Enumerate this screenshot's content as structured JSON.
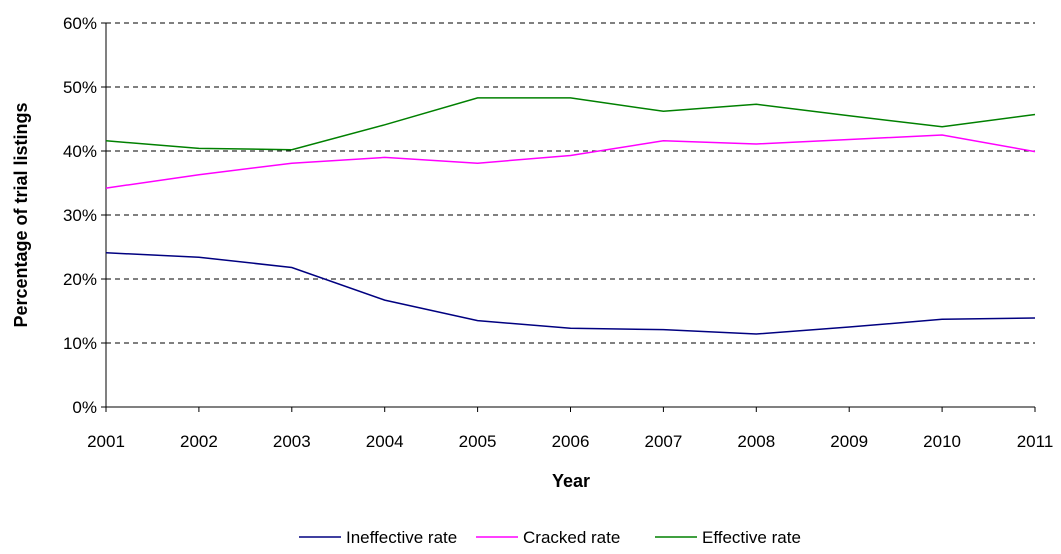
{
  "chart_data": {
    "type": "line",
    "title": "",
    "xlabel": "Year",
    "ylabel": "Percentage of trial listings",
    "x": [
      "2001",
      "2002",
      "2003",
      "2004",
      "2005",
      "2006",
      "2007",
      "2008",
      "2009",
      "2010",
      "2011"
    ],
    "ylim": [
      0,
      60
    ],
    "yticks": [
      0,
      10,
      20,
      30,
      40,
      50,
      60
    ],
    "ytick_labels": [
      "0%",
      "10%",
      "20%",
      "30%",
      "40%",
      "50%",
      "60%"
    ],
    "grid": true,
    "legend_position": "bottom",
    "series": [
      {
        "name": "Ineffective rate",
        "color": "#000080",
        "values": [
          24.1,
          23.4,
          21.8,
          16.7,
          13.5,
          12.3,
          12.1,
          11.4,
          12.5,
          13.7,
          13.9
        ]
      },
      {
        "name": "Cracked rate",
        "color": "#ff00ff",
        "values": [
          34.2,
          36.3,
          38.1,
          39.0,
          38.1,
          39.3,
          41.6,
          41.1,
          41.8,
          42.5,
          39.9
        ]
      },
      {
        "name": "Effective rate",
        "color": "#008000",
        "values": [
          41.6,
          40.4,
          40.2,
          44.1,
          48.3,
          48.3,
          46.2,
          47.3,
          45.5,
          43.8,
          45.7
        ]
      }
    ]
  }
}
